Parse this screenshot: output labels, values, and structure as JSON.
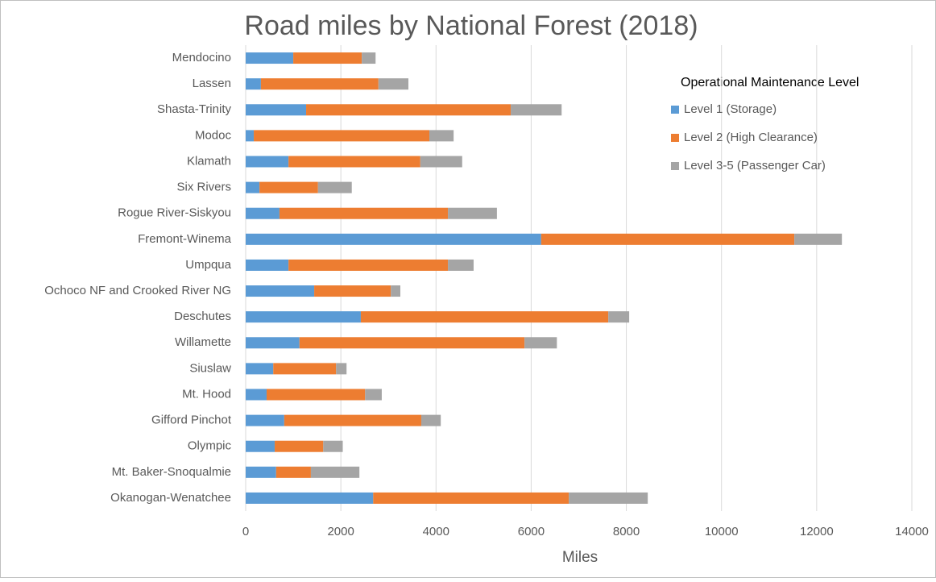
{
  "chart_data": {
    "type": "stacked-bar-horizontal",
    "title": "Road miles by National Forest (2018)",
    "x_label": "Miles",
    "legend_title": "Operational  Maintenance Level",
    "categories": [
      "Mendocino",
      "Lassen",
      "Shasta-Trinity",
      "Modoc",
      "Klamath",
      "Six Rivers",
      "Rogue River-Siskyou",
      "Fremont-Winema",
      "Umpqua",
      "Ochoco NF and Crooked River NG",
      "Deschutes",
      "Willamette",
      "Siuslaw",
      "Mt. Hood",
      "Gifford Pinchot",
      "Olympic",
      "Mt. Baker-Snoqualmie",
      "Okanogan-Wenatchee"
    ],
    "series": [
      {
        "name": "Level 1 (Storage)",
        "color": "#5b9bd5",
        "values": [
          1000,
          320,
          1270,
          170,
          900,
          290,
          710,
          6210,
          900,
          1440,
          2420,
          1130,
          580,
          440,
          810,
          610,
          640,
          2680
        ]
      },
      {
        "name": "Level 2 (High Clearance)",
        "color": "#ed7d31",
        "values": [
          1440,
          2470,
          4300,
          3690,
          2770,
          1230,
          3540,
          5320,
          3350,
          1610,
          5200,
          4730,
          1320,
          2070,
          2880,
          1020,
          730,
          4110
        ]
      },
      {
        "name": "Level 3-5 (Passenger Car)",
        "color": "#a5a5a5",
        "values": [
          290,
          630,
          1070,
          510,
          880,
          710,
          1030,
          1000,
          540,
          200,
          440,
          680,
          220,
          350,
          410,
          410,
          1020,
          1660
        ]
      }
    ],
    "xlim": [
      0,
      14000
    ],
    "xticks": [
      0,
      2000,
      4000,
      6000,
      8000,
      10000,
      12000,
      14000
    ],
    "grid": true
  }
}
